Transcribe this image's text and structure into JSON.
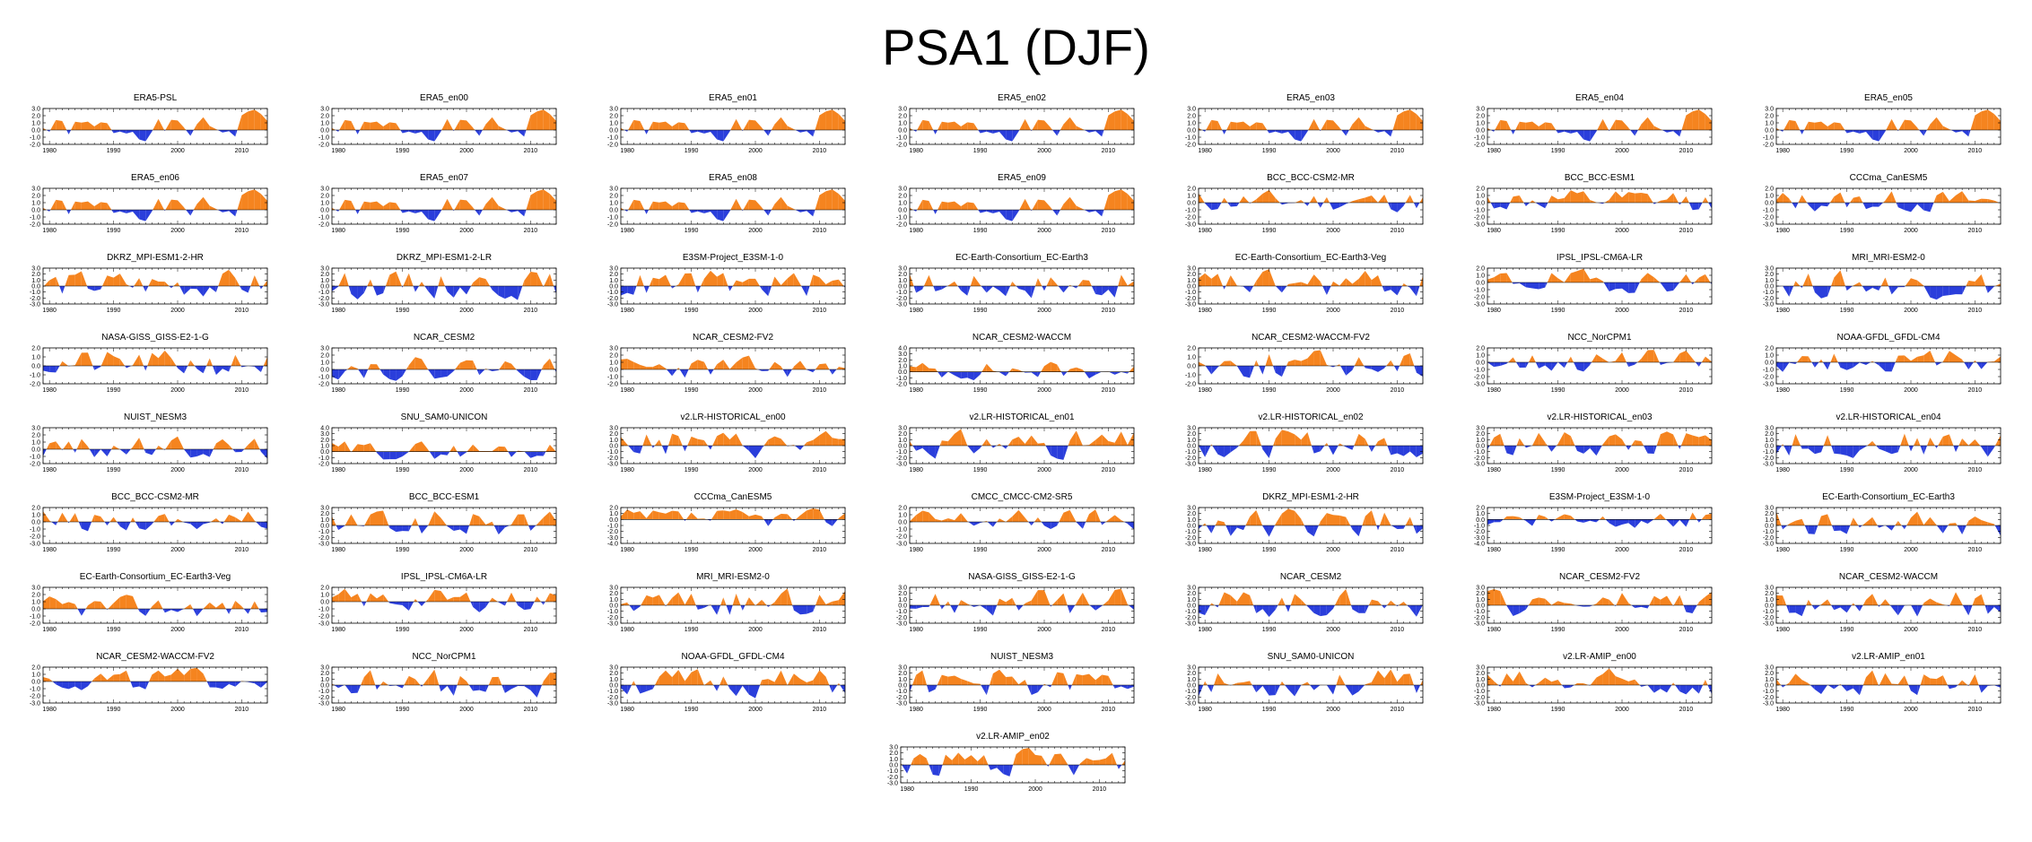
{
  "title": "PSA1 (DJF)",
  "colors": {
    "positive": "#f5841f",
    "negative": "#2a3edb",
    "axis": "#000000"
  },
  "chart_data": {
    "type": "area",
    "x_range": [
      1979,
      2014
    ],
    "x_ticks": [
      "1980",
      "1990",
      "2000",
      "2010"
    ],
    "panels": [
      {
        "title": "ERA5-PSL",
        "y_ticks": [
          "3.0",
          "2.0",
          "1.0",
          "0.0",
          "-1.0",
          "-2.0"
        ],
        "ylim": [
          -2,
          3
        ],
        "seed": 1
      },
      {
        "title": "ERA5_en00",
        "y_ticks": [
          "3.0",
          "2.0",
          "1.0",
          "0.0",
          "-1.0",
          "-2.0"
        ],
        "ylim": [
          -2,
          3
        ],
        "seed": 1
      },
      {
        "title": "ERA5_en01",
        "y_ticks": [
          "3.0",
          "2.0",
          "1.0",
          "0.0",
          "-1.0",
          "-2.0"
        ],
        "ylim": [
          -2,
          3
        ],
        "seed": 1
      },
      {
        "title": "ERA5_en02",
        "y_ticks": [
          "3.0",
          "2.0",
          "1.0",
          "0.0",
          "-1.0",
          "-2.0"
        ],
        "ylim": [
          -2,
          3
        ],
        "seed": 1
      },
      {
        "title": "ERA5_en03",
        "y_ticks": [
          "3.0",
          "2.0",
          "1.0",
          "0.0",
          "-1.0",
          "-2.0"
        ],
        "ylim": [
          -2,
          3
        ],
        "seed": 1
      },
      {
        "title": "ERA5_en04",
        "y_ticks": [
          "3.0",
          "2.0",
          "1.0",
          "0.0",
          "-1.0",
          "-2.0"
        ],
        "ylim": [
          -2,
          3
        ],
        "seed": 1
      },
      {
        "title": "ERA5_en05",
        "y_ticks": [
          "3.0",
          "2.0",
          "1.0",
          "0.0",
          "-1.0",
          "-2.0"
        ],
        "ylim": [
          -2,
          3
        ],
        "seed": 1
      },
      {
        "title": "ERA5_en06",
        "y_ticks": [
          "3.0",
          "2.0",
          "1.0",
          "0.0",
          "-1.0",
          "-2.0"
        ],
        "ylim": [
          -2,
          3
        ],
        "seed": 1
      },
      {
        "title": "ERA5_en07",
        "y_ticks": [
          "3.0",
          "2.0",
          "1.0",
          "0.0",
          "-1.0",
          "-2.0"
        ],
        "ylim": [
          -2,
          3
        ],
        "seed": 1
      },
      {
        "title": "ERA5_en08",
        "y_ticks": [
          "3.0",
          "2.0",
          "1.0",
          "0.0",
          "-1.0",
          "-2.0"
        ],
        "ylim": [
          -2,
          3
        ],
        "seed": 1
      },
      {
        "title": "ERA5_en09",
        "y_ticks": [
          "3.0",
          "2.0",
          "1.0",
          "0.0",
          "-1.0",
          "-2.0"
        ],
        "ylim": [
          -2,
          3
        ],
        "seed": 1
      },
      {
        "title": "BCC_BCC-CSM2-MR",
        "y_ticks": [
          "2.0",
          "1.0",
          "0.0",
          "-1.0",
          "-2.0",
          "-3.0"
        ],
        "ylim": [
          -3,
          2
        ],
        "seed": 11
      },
      {
        "title": "BCC_BCC-ESM1",
        "y_ticks": [
          "2.0",
          "1.0",
          "0.0",
          "-1.0",
          "-2.0",
          "-3.0"
        ],
        "ylim": [
          -3,
          2
        ],
        "seed": 12
      },
      {
        "title": "CCCma_CanESM5",
        "y_ticks": [
          "2.0",
          "1.0",
          "0.0",
          "-1.0",
          "-2.0",
          "-3.0"
        ],
        "ylim": [
          -3,
          2
        ],
        "seed": 13
      },
      {
        "title": "DKRZ_MPI-ESM1-2-HR",
        "y_ticks": [
          "3.0",
          "2.0",
          "1.0",
          "0.0",
          "-1.0",
          "-2.0",
          "-3.0"
        ],
        "ylim": [
          -3,
          3
        ],
        "seed": 14
      },
      {
        "title": "DKRZ_MPI-ESM1-2-LR",
        "y_ticks": [
          "3.0",
          "2.0",
          "1.0",
          "0.0",
          "-1.0",
          "-2.0",
          "-3.0"
        ],
        "ylim": [
          -3,
          3
        ],
        "seed": 15
      },
      {
        "title": "E3SM-Project_E3SM-1-0",
        "y_ticks": [
          "3.0",
          "2.0",
          "1.0",
          "0.0",
          "-1.0",
          "-2.0",
          "-3.0"
        ],
        "ylim": [
          -3,
          3
        ],
        "seed": 16
      },
      {
        "title": "EC-Earth-Consortium_EC-Earth3",
        "y_ticks": [
          "3.0",
          "2.0",
          "1.0",
          "0.0",
          "-1.0",
          "-2.0",
          "-3.0"
        ],
        "ylim": [
          -3,
          3
        ],
        "seed": 17
      },
      {
        "title": "EC-Earth-Consortium_EC-Earth3-Veg",
        "y_ticks": [
          "3.0",
          "2.0",
          "1.0",
          "0.0",
          "-1.0",
          "-2.0",
          "-3.0"
        ],
        "ylim": [
          -3,
          3
        ],
        "seed": 18
      },
      {
        "title": "IPSL_IPSL-CM6A-LR",
        "y_ticks": [
          "2.0",
          "1.0",
          "0.0",
          "-1.0",
          "-2.0",
          "-3.0"
        ],
        "ylim": [
          -3,
          2
        ],
        "seed": 19
      },
      {
        "title": "MRI_MRI-ESM2-0",
        "y_ticks": [
          "3.0",
          "2.0",
          "1.0",
          "0.0",
          "-1.0",
          "-2.0",
          "-3.0"
        ],
        "ylim": [
          -3,
          3
        ],
        "seed": 20
      },
      {
        "title": "NASA-GISS_GISS-E2-1-G",
        "y_ticks": [
          "2.0",
          "1.0",
          "0.0",
          "-1.0",
          "-2.0"
        ],
        "ylim": [
          -2,
          2
        ],
        "seed": 21
      },
      {
        "title": "NCAR_CESM2",
        "y_ticks": [
          "3.0",
          "2.0",
          "1.0",
          "0.0",
          "-1.0",
          "-2.0"
        ],
        "ylim": [
          -2,
          3
        ],
        "seed": 22
      },
      {
        "title": "NCAR_CESM2-FV2",
        "y_ticks": [
          "3.0",
          "2.0",
          "1.0",
          "0.0",
          "-1.0",
          "-2.0"
        ],
        "ylim": [
          -2,
          3
        ],
        "seed": 23
      },
      {
        "title": "NCAR_CESM2-WACCM",
        "y_ticks": [
          "4.0",
          "3.0",
          "2.0",
          "1.0",
          "0.0",
          "-1.0",
          "-2.0"
        ],
        "ylim": [
          -2,
          4
        ],
        "seed": 24
      },
      {
        "title": "NCAR_CESM2-WACCM-FV2",
        "y_ticks": [
          "2.0",
          "1.0",
          "0.0",
          "-1.0",
          "-2.0"
        ],
        "ylim": [
          -2,
          2
        ],
        "seed": 25
      },
      {
        "title": "NCC_NorCPM1",
        "y_ticks": [
          "2.0",
          "1.0",
          "0.0",
          "-1.0",
          "-2.0",
          "-3.0"
        ],
        "ylim": [
          -3,
          2
        ],
        "seed": 26
      },
      {
        "title": "NOAA-GFDL_GFDL-CM4",
        "y_ticks": [
          "2.0",
          "1.0",
          "0.0",
          "-1.0",
          "-2.0",
          "-3.0"
        ],
        "ylim": [
          -3,
          2
        ],
        "seed": 27
      },
      {
        "title": "NUIST_NESM3",
        "y_ticks": [
          "3.0",
          "2.0",
          "1.0",
          "0.0",
          "-1.0",
          "-2.0"
        ],
        "ylim": [
          -2,
          3
        ],
        "seed": 28
      },
      {
        "title": "SNU_SAM0-UNICON",
        "y_ticks": [
          "4.0",
          "3.0",
          "2.0",
          "1.0",
          "0.0",
          "-1.0",
          "-2.0"
        ],
        "ylim": [
          -2,
          4
        ],
        "seed": 29
      },
      {
        "title": "v2.LR-HISTORICAL_en00",
        "y_ticks": [
          "3.0",
          "2.0",
          "1.0",
          "0.0",
          "-1.0",
          "-2.0",
          "-3.0"
        ],
        "ylim": [
          -3,
          3
        ],
        "seed": 30
      },
      {
        "title": "v2.LR-HISTORICAL_en01",
        "y_ticks": [
          "3.0",
          "2.0",
          "1.0",
          "0.0",
          "-1.0",
          "-2.0",
          "-3.0"
        ],
        "ylim": [
          -3,
          3
        ],
        "seed": 31
      },
      {
        "title": "v2.LR-HISTORICAL_en02",
        "y_ticks": [
          "3.0",
          "2.0",
          "1.0",
          "0.0",
          "-1.0",
          "-2.0",
          "-3.0"
        ],
        "ylim": [
          -3,
          3
        ],
        "seed": 32
      },
      {
        "title": "v2.LR-HISTORICAL_en03",
        "y_ticks": [
          "3.0",
          "2.0",
          "1.0",
          "0.0",
          "-1.0",
          "-2.0",
          "-3.0"
        ],
        "ylim": [
          -3,
          3
        ],
        "seed": 33
      },
      {
        "title": "v2.LR-HISTORICAL_en04",
        "y_ticks": [
          "3.0",
          "2.0",
          "1.0",
          "0.0",
          "-1.0",
          "-2.0",
          "-3.0"
        ],
        "ylim": [
          -3,
          3
        ],
        "seed": 34
      },
      {
        "title": "BCC_BCC-CSM2-MR",
        "y_ticks": [
          "2.0",
          "1.0",
          "0.0",
          "-1.0",
          "-2.0",
          "-3.0"
        ],
        "ylim": [
          -3,
          2
        ],
        "seed": 35
      },
      {
        "title": "BCC_BCC-ESM1",
        "y_ticks": [
          "3.0",
          "2.0",
          "1.0",
          "0.0",
          "-1.0",
          "-2.0",
          "-3.0"
        ],
        "ylim": [
          -3,
          3
        ],
        "seed": 36
      },
      {
        "title": "CCCma_CanESM5",
        "y_ticks": [
          "2.0",
          "1.0",
          "0.0",
          "-1.0",
          "-2.0",
          "-3.0",
          "-4.0"
        ],
        "ylim": [
          -4,
          2
        ],
        "seed": 37
      },
      {
        "title": "CMCC_CMCC-CM2-SR5",
        "y_ticks": [
          "2.0",
          "1.0",
          "0.0",
          "-1.0",
          "-2.0",
          "-3.0"
        ],
        "ylim": [
          -3,
          2
        ],
        "seed": 38
      },
      {
        "title": "DKRZ_MPI-ESM1-2-HR",
        "y_ticks": [
          "3.0",
          "2.0",
          "1.0",
          "0.0",
          "-1.0",
          "-2.0",
          "-3.0"
        ],
        "ylim": [
          -3,
          3
        ],
        "seed": 39
      },
      {
        "title": "E3SM-Project_E3SM-1-0",
        "y_ticks": [
          "2.0",
          "1.0",
          "0.0",
          "-1.0",
          "-2.0",
          "-3.0",
          "-4.0"
        ],
        "ylim": [
          -4,
          2
        ],
        "seed": 40
      },
      {
        "title": "EC-Earth-Consortium_EC-Earth3",
        "y_ticks": [
          "3.0",
          "2.0",
          "1.0",
          "0.0",
          "-1.0",
          "-2.0",
          "-3.0"
        ],
        "ylim": [
          -3,
          3
        ],
        "seed": 41
      },
      {
        "title": "EC-Earth-Consortium_EC-Earth3-Veg",
        "y_ticks": [
          "3.0",
          "2.0",
          "1.0",
          "0.0",
          "-1.0",
          "-2.0"
        ],
        "ylim": [
          -2,
          3
        ],
        "seed": 42
      },
      {
        "title": "IPSL_IPSL-CM6A-LR",
        "y_ticks": [
          "2.0",
          "1.0",
          "0.0",
          "-1.0",
          "-2.0",
          "-3.0"
        ],
        "ylim": [
          -3,
          2
        ],
        "seed": 43
      },
      {
        "title": "MRI_MRI-ESM2-0",
        "y_ticks": [
          "3.0",
          "2.0",
          "1.0",
          "0.0",
          "-1.0",
          "-2.0",
          "-3.0"
        ],
        "ylim": [
          -3,
          3
        ],
        "seed": 44
      },
      {
        "title": "NASA-GISS_GISS-E2-1-G",
        "y_ticks": [
          "3.0",
          "2.0",
          "1.0",
          "0.0",
          "-1.0",
          "-2.0",
          "-3.0"
        ],
        "ylim": [
          -3,
          3
        ],
        "seed": 45
      },
      {
        "title": "NCAR_CESM2",
        "y_ticks": [
          "3.0",
          "2.0",
          "1.0",
          "0.0",
          "-1.0",
          "-2.0",
          "-3.0"
        ],
        "ylim": [
          -3,
          3
        ],
        "seed": 46
      },
      {
        "title": "NCAR_CESM2-FV2",
        "y_ticks": [
          "3.0",
          "2.0",
          "1.0",
          "0.0",
          "-1.0",
          "-2.0",
          "-3.0"
        ],
        "ylim": [
          -3,
          3
        ],
        "seed": 47
      },
      {
        "title": "NCAR_CESM2-WACCM",
        "y_ticks": [
          "3.0",
          "2.0",
          "1.0",
          "0.0",
          "-1.0",
          "-2.0",
          "-3.0"
        ],
        "ylim": [
          -3,
          3
        ],
        "seed": 48
      },
      {
        "title": "NCAR_CESM2-WACCM-FV2",
        "y_ticks": [
          "2.0",
          "1.0",
          "0.0",
          "-1.0",
          "-2.0",
          "-3.0"
        ],
        "ylim": [
          -3,
          2
        ],
        "seed": 49
      },
      {
        "title": "NCC_NorCPM1",
        "y_ticks": [
          "3.0",
          "2.0",
          "1.0",
          "0.0",
          "-1.0",
          "-2.0",
          "-3.0"
        ],
        "ylim": [
          -3,
          3
        ],
        "seed": 50
      },
      {
        "title": "NOAA-GFDL_GFDL-CM4",
        "y_ticks": [
          "3.0",
          "2.0",
          "1.0",
          "0.0",
          "-1.0",
          "-2.0",
          "-3.0"
        ],
        "ylim": [
          -3,
          3
        ],
        "seed": 51
      },
      {
        "title": "NUIST_NESM3",
        "y_ticks": [
          "3.0",
          "2.0",
          "1.0",
          "0.0",
          "-1.0",
          "-2.0",
          "-3.0"
        ],
        "ylim": [
          -3,
          3
        ],
        "seed": 52
      },
      {
        "title": "SNU_SAM0-UNICON",
        "y_ticks": [
          "3.0",
          "2.0",
          "1.0",
          "0.0",
          "-1.0",
          "-2.0",
          "-3.0"
        ],
        "ylim": [
          -3,
          3
        ],
        "seed": 53
      },
      {
        "title": "v2.LR-AMIP_en00",
        "y_ticks": [
          "3.0",
          "2.0",
          "1.0",
          "0.0",
          "-1.0",
          "-2.0",
          "-3.0"
        ],
        "ylim": [
          -3,
          3
        ],
        "seed": 54
      },
      {
        "title": "v2.LR-AMIP_en01",
        "y_ticks": [
          "3.0",
          "2.0",
          "1.0",
          "0.0",
          "-1.0",
          "-2.0",
          "-3.0"
        ],
        "ylim": [
          -3,
          3
        ],
        "seed": 55
      },
      {
        "title": "v2.LR-AMIP_en02",
        "y_ticks": [
          "3.0",
          "2.0",
          "1.0",
          "0.0",
          "-1.0",
          "-2.0",
          "-3.0"
        ],
        "ylim": [
          -3,
          3
        ],
        "seed": 56
      }
    ]
  }
}
